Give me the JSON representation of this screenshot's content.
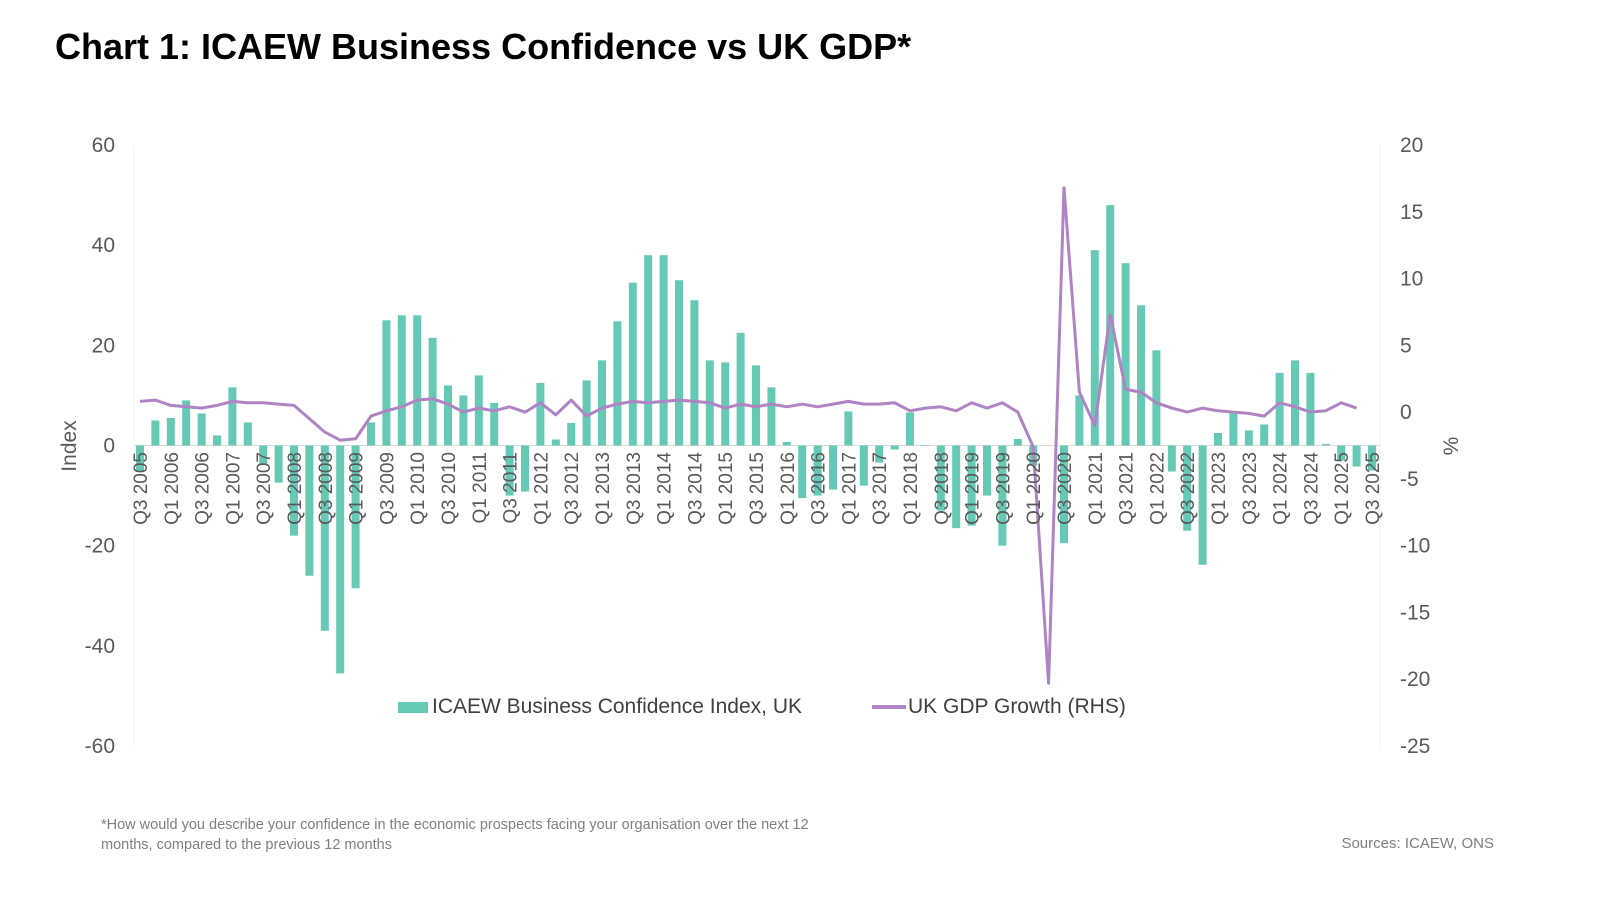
{
  "title": "Chart 1: ICAEW Business Confidence vs UK GDP*",
  "footnote": "*How would you describe your confidence in the economic prospects facing your organisation over the next 12 months, compared to the previous 12 months",
  "sources": "Sources: ICAEW, ONS",
  "colors": {
    "bars": "#66c9b5",
    "line": "#b083c4",
    "text": "#595959"
  },
  "chart_data": {
    "type": "bar+line",
    "title": "Chart 1: ICAEW Business Confidence vs UK GDP*",
    "ylabel": "Index",
    "y2label": "%",
    "ylim": [
      -60,
      60
    ],
    "yticks": [
      60,
      40,
      20,
      0,
      -20,
      -40,
      -60
    ],
    "y2lim": [
      -25,
      20
    ],
    "y2ticks": [
      20,
      15,
      10,
      5,
      0,
      -5,
      -10,
      -15,
      -20,
      -25
    ],
    "grid": false,
    "legend": "bottom-inside",
    "categories": [
      "Q3 2005",
      "Q4 2005",
      "Q1 2006",
      "Q2 2006",
      "Q3 2006",
      "Q4 2006",
      "Q1 2007",
      "Q2 2007",
      "Q3 2007",
      "Q4 2007",
      "Q1 2008",
      "Q2 2008",
      "Q3 2008",
      "Q4 2008",
      "Q1 2009",
      "Q2 2009",
      "Q3 2009",
      "Q4 2009",
      "Q1 2010",
      "Q2 2010",
      "Q3 2010",
      "Q4 2010",
      "Q1 2011",
      "Q2 2011",
      "Q3 2011",
      "Q4 2011",
      "Q1 2012",
      "Q2 2012",
      "Q3 2012",
      "Q4 2012",
      "Q1 2013",
      "Q2 2013",
      "Q3 2013",
      "Q4 2013",
      "Q1 2014",
      "Q2 2014",
      "Q3 2014",
      "Q4 2014",
      "Q1 2015",
      "Q2 2015",
      "Q3 2015",
      "Q4 2015",
      "Q1 2016",
      "Q2 2016",
      "Q3 2016",
      "Q4 2016",
      "Q1 2017",
      "Q2 2017",
      "Q3 2017",
      "Q4 2017",
      "Q1 2018",
      "Q2 2018",
      "Q3 2018",
      "Q4 2018",
      "Q1 2019",
      "Q2 2019",
      "Q3 2019",
      "Q4 2019",
      "Q1 2020",
      "Q2 2020",
      "Q3 2020",
      "Q4 2020",
      "Q1 2021",
      "Q2 2021",
      "Q3 2021",
      "Q4 2021",
      "Q1 2022",
      "Q2 2022",
      "Q3 2022",
      "Q4 2022",
      "Q1 2023",
      "Q2 2023",
      "Q3 2023",
      "Q4 2023",
      "Q1 2024",
      "Q2 2024",
      "Q3 2024",
      "Q4 2024",
      "Q1 2025",
      "Q2 2025",
      "Q3 2025"
    ],
    "series": [
      {
        "name": "ICAEW Business Confidence Index, UK",
        "type": "bar",
        "axis": "left",
        "values": [
          -5,
          5,
          5.5,
          9,
          6.4,
          2,
          11.6,
          4.6,
          -3.6,
          -7.4,
          -18,
          -26,
          -37,
          -45.5,
          -28.5,
          4.6,
          25,
          26,
          26,
          21.5,
          12,
          10,
          14,
          8.5,
          -10,
          -9.2,
          12.5,
          1.2,
          4.5,
          13,
          17,
          24.8,
          32.5,
          38,
          38,
          33,
          29,
          17,
          16.6,
          22.5,
          16,
          11.6,
          0.7,
          -10.5,
          -10,
          -8.8,
          6.8,
          -8,
          -3.4,
          -0.8,
          6.6,
          0,
          -13,
          -16.5,
          -16,
          -10,
          -20,
          1.3,
          -4,
          null,
          -19.5,
          10,
          39,
          48,
          36.4,
          28,
          19,
          -5.2,
          -17,
          -23.8,
          2.5,
          6.4,
          3,
          4.2,
          14.5,
          17,
          14.5,
          0.3,
          -3,
          -4.2,
          -5
        ]
      },
      {
        "name": "UK GDP Growth (RHS)",
        "type": "line",
        "axis": "right",
        "values": [
          0.8,
          0.9,
          0.5,
          0.4,
          0.3,
          0.5,
          0.8,
          0.7,
          0.7,
          0.6,
          0.5,
          -0.5,
          -1.5,
          -2.1,
          -2.0,
          -0.3,
          0.1,
          0.4,
          0.9,
          1.0,
          0.6,
          0.0,
          0.3,
          0.1,
          0.4,
          0.0,
          0.7,
          -0.2,
          0.9,
          -0.3,
          0.3,
          0.6,
          0.8,
          0.7,
          0.8,
          0.9,
          0.8,
          0.7,
          0.3,
          0.6,
          0.4,
          0.6,
          0.4,
          0.6,
          0.4,
          0.6,
          0.8,
          0.6,
          0.6,
          0.7,
          0.1,
          0.3,
          0.4,
          0.1,
          0.7,
          0.3,
          0.7,
          0.0,
          -2.6,
          -20.3,
          16.8,
          1.5,
          -1.0,
          7.3,
          1.7,
          1.5,
          0.7,
          0.3,
          0.0,
          0.3,
          0.1,
          0.0,
          -0.1,
          -0.3,
          0.7,
          0.4,
          0.0,
          0.1,
          0.7,
          0.3,
          null
        ]
      }
    ]
  }
}
